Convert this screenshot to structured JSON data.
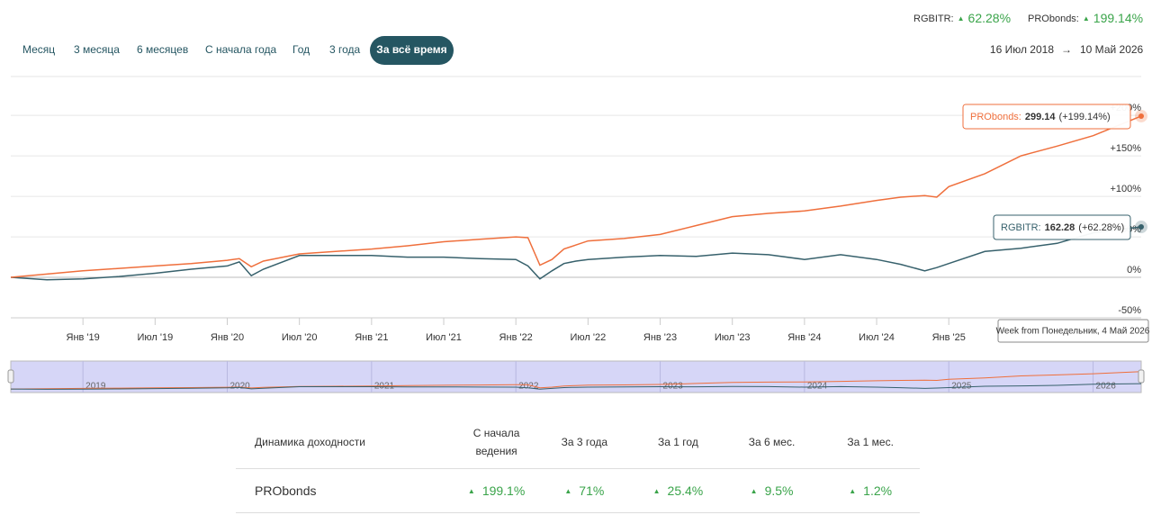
{
  "header": {
    "indices": [
      {
        "label": "RGBITR:",
        "change": "62.28%"
      },
      {
        "label": "PRObonds:",
        "change": "199.14%"
      }
    ],
    "periods": [
      "Месяц",
      "3 месяца",
      "6 месяцев",
      "С начала года",
      "Год",
      "3 года",
      "За всё время"
    ],
    "active_period": 6,
    "date_from": "16 Июл 2018",
    "date_to": "10 Май 2026"
  },
  "chart_data": {
    "type": "line",
    "x": [
      "2018-07",
      "2018-10",
      "2019-01",
      "2019-04",
      "2019-07",
      "2019-10",
      "2020-01",
      "2020-02",
      "2020-03",
      "2020-04",
      "2020-07",
      "2020-10",
      "2021-01",
      "2021-04",
      "2021-07",
      "2021-10",
      "2022-01",
      "2022-02",
      "2022-03",
      "2022-04",
      "2022-05",
      "2022-06",
      "2022-07",
      "2022-10",
      "2023-01",
      "2023-04",
      "2023-07",
      "2023-10",
      "2024-01",
      "2024-04",
      "2024-07",
      "2024-09",
      "2024-11",
      "2024-12",
      "2025-01",
      "2025-04",
      "2025-07",
      "2025-10",
      "2026-01",
      "2026-05"
    ],
    "series": [
      {
        "name": "PRObonds",
        "color": "#ef6f3c",
        "values": [
          0,
          4,
          8,
          11,
          14,
          17,
          21,
          23,
          13,
          20,
          29,
          32,
          35,
          39,
          44,
          47,
          50,
          49,
          15,
          22,
          35,
          40,
          45,
          48,
          53,
          64,
          75,
          79,
          82,
          88,
          95,
          99,
          101,
          99,
          112,
          128,
          150,
          162,
          175,
          199.14
        ]
      },
      {
        "name": "RGBITR",
        "color": "#37616c",
        "values": [
          0,
          -3,
          -2,
          1,
          5,
          10,
          14,
          19,
          2,
          10,
          27,
          27,
          27,
          25,
          25,
          23,
          22,
          14,
          -2,
          8,
          17,
          20,
          22,
          25,
          27,
          26,
          30,
          28,
          22,
          28,
          22,
          16,
          8,
          12,
          17,
          32,
          36,
          42,
          55,
          62.28
        ]
      }
    ],
    "xlim": [
      "2018-07",
      "2026-05"
    ],
    "ylim": [
      -50,
      248
    ],
    "xticks": [
      {
        "value": "2019-01",
        "label": "Янв '19"
      },
      {
        "value": "2019-07",
        "label": "Июл '19"
      },
      {
        "value": "2020-01",
        "label": "Янв '20"
      },
      {
        "value": "2020-07",
        "label": "Июл '20"
      },
      {
        "value": "2021-01",
        "label": "Янв '21"
      },
      {
        "value": "2021-07",
        "label": "Июл '21"
      },
      {
        "value": "2022-01",
        "label": "Янв '22"
      },
      {
        "value": "2022-07",
        "label": "Июл '22"
      },
      {
        "value": "2023-01",
        "label": "Янв '23"
      },
      {
        "value": "2023-07",
        "label": "Июл '23"
      },
      {
        "value": "2024-01",
        "label": "Янв '24"
      },
      {
        "value": "2024-07",
        "label": "Июл '24"
      },
      {
        "value": "2025-01",
        "label": "Янв '25"
      }
    ],
    "yticks": [
      {
        "value": -50,
        "label": "-50%"
      },
      {
        "value": 0,
        "label": "0%"
      },
      {
        "value": 50,
        "label": "+50%"
      },
      {
        "value": 100,
        "label": "+100%"
      },
      {
        "value": 150,
        "label": "+150%"
      },
      {
        "value": 200,
        "label": "+200%"
      }
    ],
    "grid": true,
    "tooltips": [
      {
        "label": "PRObonds:",
        "value": "299.14",
        "change": "(+199.14%)"
      },
      {
        "label": "RGBITR:",
        "value": "162.28",
        "change": "(+62.28%)"
      }
    ],
    "date_tooltip": "Week from Понедельник, 4 Май 2026",
    "navigator": {
      "xticks": [
        {
          "value": "2019-01",
          "label": "2019"
        },
        {
          "value": "2020-01",
          "label": "2020"
        },
        {
          "value": "2021-01",
          "label": "2021"
        },
        {
          "value": "2022-01",
          "label": "2022"
        },
        {
          "value": "2023-01",
          "label": "2023"
        },
        {
          "value": "2024-01",
          "label": "2024"
        },
        {
          "value": "2025-01",
          "label": "2025"
        },
        {
          "value": "2026-01",
          "label": "2026"
        }
      ]
    }
  },
  "table": {
    "header": [
      "Динамика доходности",
      "С начала ведения",
      "За 3 года",
      "За 1 год",
      "За 6 мес.",
      "За 1 мес."
    ],
    "rows": [
      [
        "PRObonds",
        "199.1%",
        "71%",
        "25.4%",
        "9.5%",
        "1.2%"
      ]
    ]
  }
}
